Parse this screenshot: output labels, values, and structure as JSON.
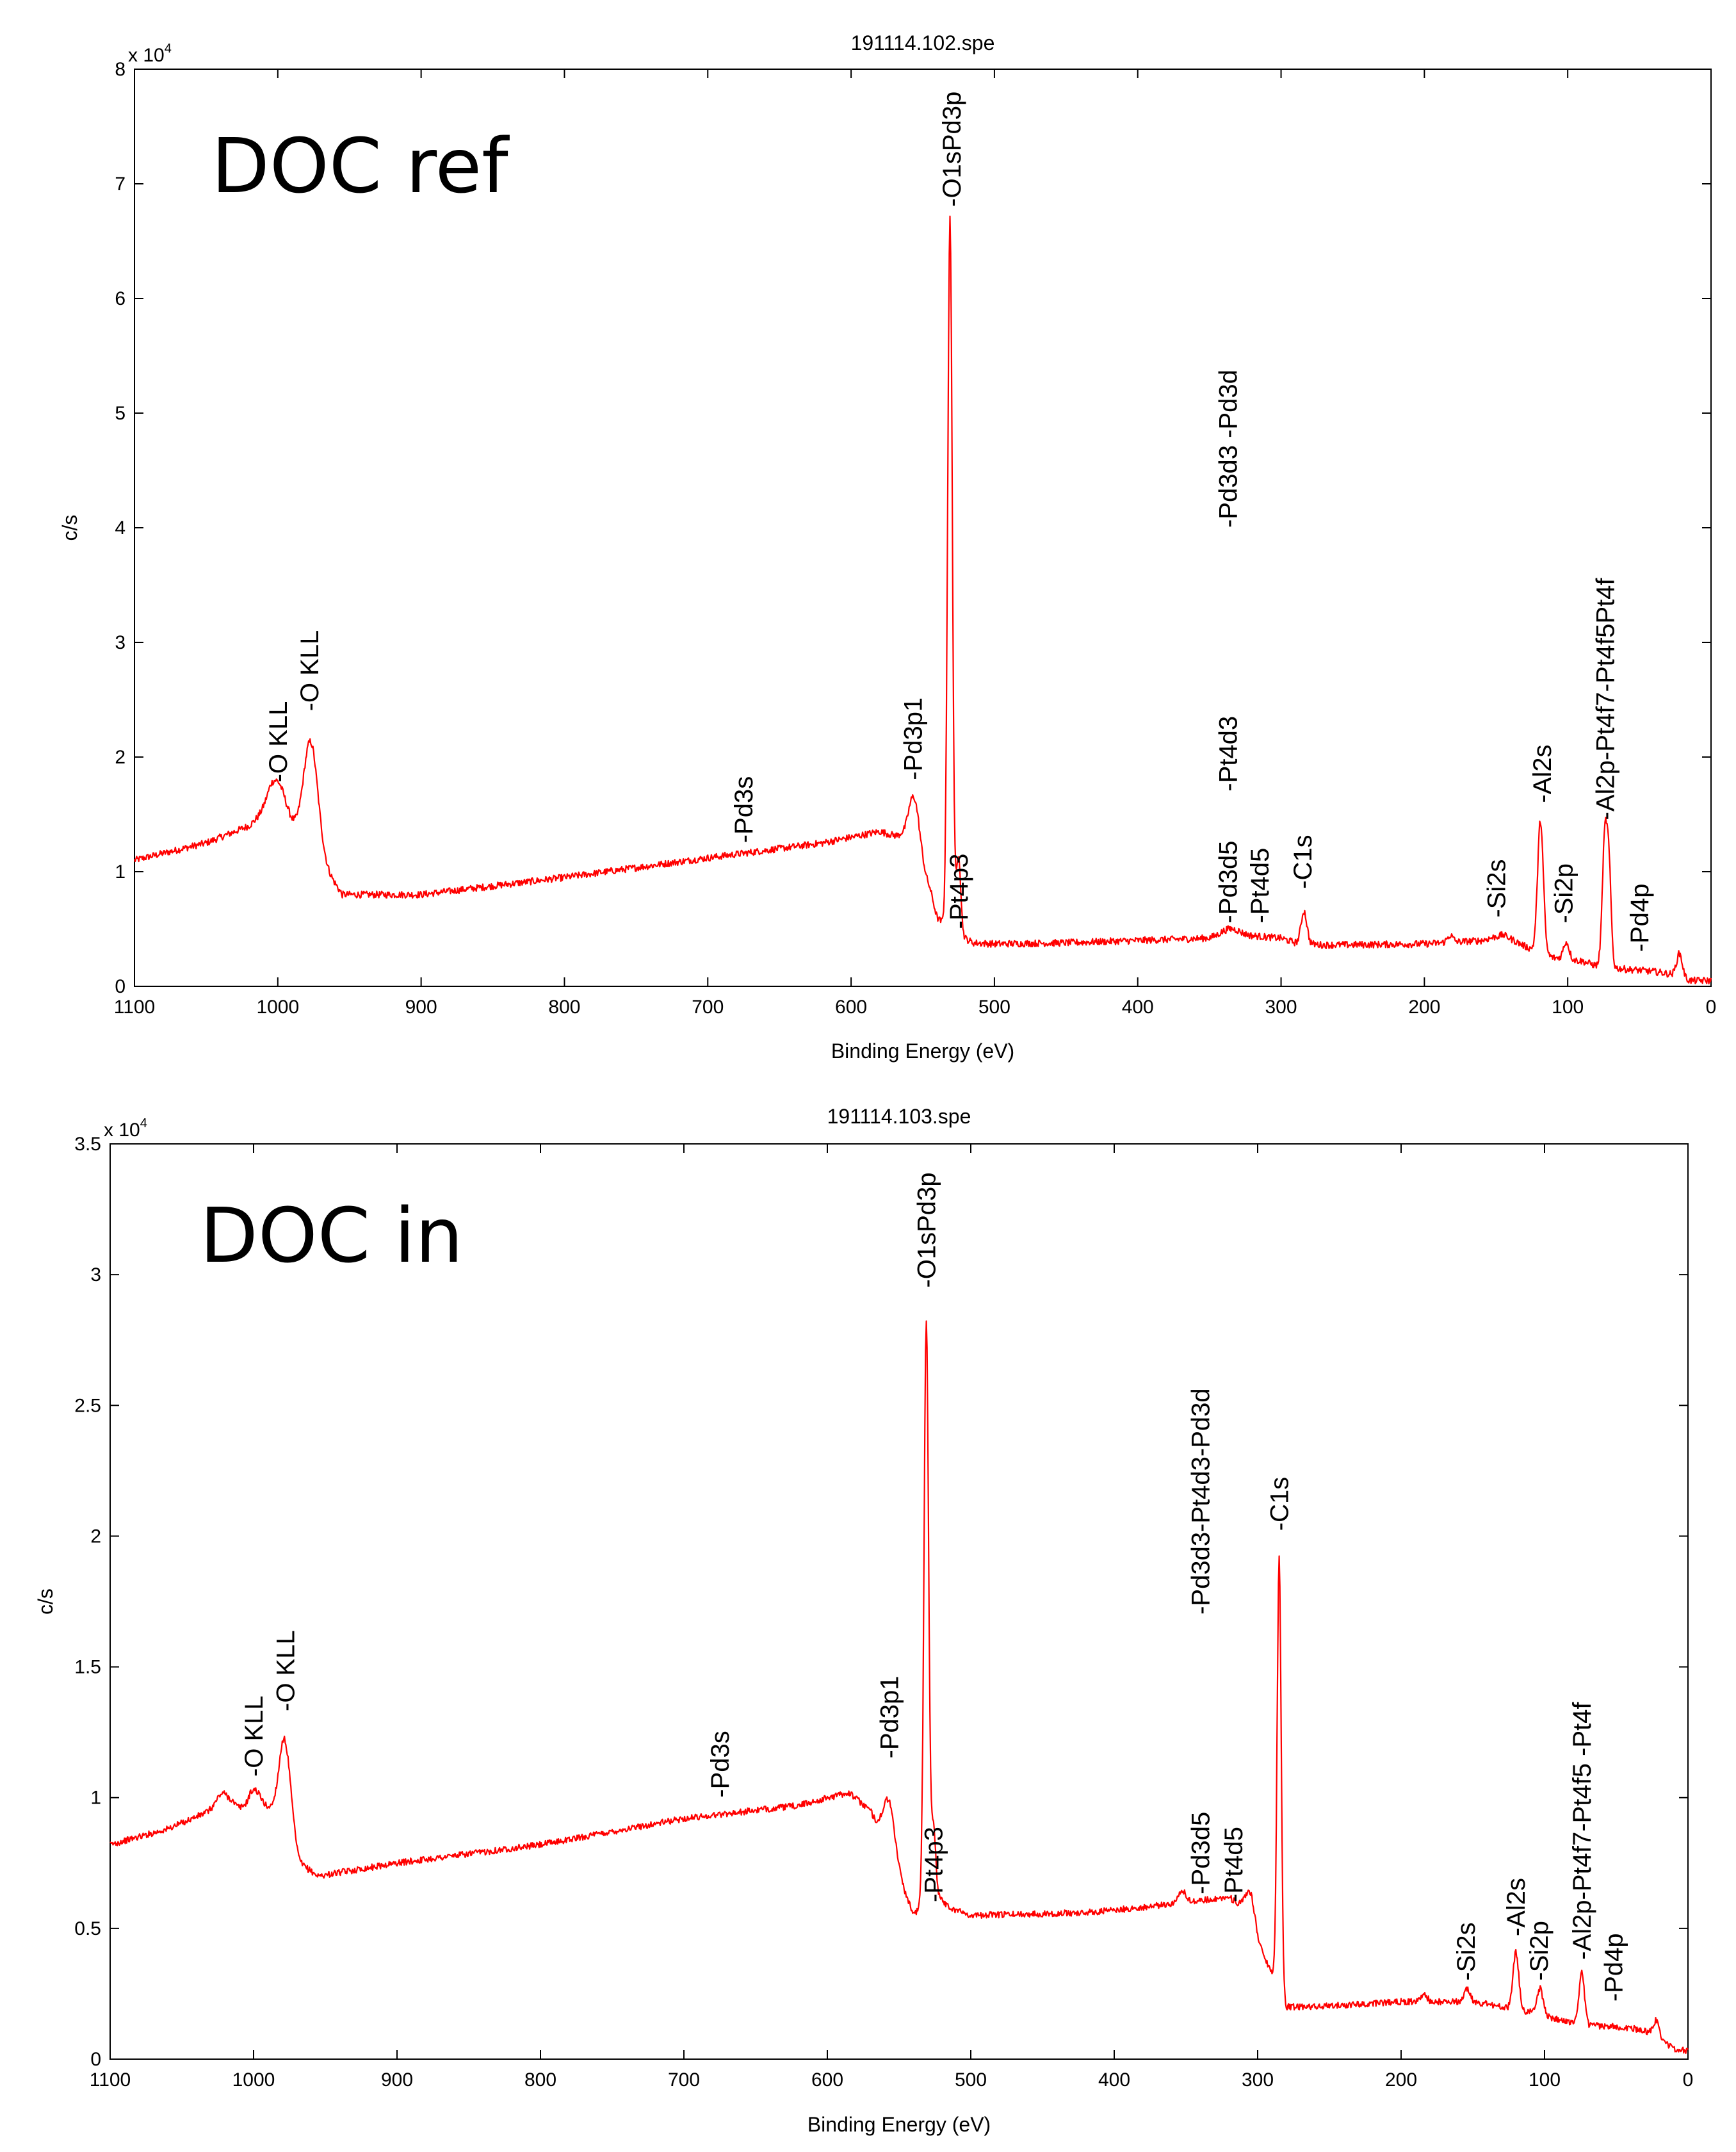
{
  "chart_data": [
    {
      "type": "line",
      "title": "191114.102.spe",
      "annotation": "DOC ref",
      "xlabel": "Binding Energy (eV)",
      "ylabel": "c/s",
      "multiplier_base": "x 10",
      "multiplier_exp": "4",
      "xlim": [
        1100,
        0
      ],
      "ylim": [
        0,
        8
      ],
      "x_ticks": [
        1100,
        1000,
        900,
        800,
        700,
        600,
        500,
        400,
        300,
        200,
        100,
        0
      ],
      "y_ticks": [
        0,
        1,
        2,
        3,
        4,
        5,
        6,
        7,
        8
      ],
      "series_color": "#ff0000",
      "baseline": [
        [
          1100,
          1.1
        ],
        [
          1050,
          1.25
        ],
        [
          1020,
          1.4
        ],
        [
          1005,
          1.55
        ],
        [
          985,
          1.3
        ],
        [
          968,
          1.05
        ],
        [
          955,
          0.8
        ],
        [
          900,
          0.8
        ],
        [
          800,
          0.95
        ],
        [
          700,
          1.12
        ],
        [
          620,
          1.25
        ],
        [
          580,
          1.35
        ],
        [
          565,
          1.3
        ],
        [
          545,
          0.85
        ],
        [
          540,
          0.6
        ],
        [
          532,
          0.5
        ],
        [
          525,
          0.45
        ],
        [
          515,
          0.38
        ],
        [
          500,
          0.37
        ],
        [
          450,
          0.38
        ],
        [
          400,
          0.4
        ],
        [
          350,
          0.42
        ],
        [
          330,
          0.45
        ],
        [
          300,
          0.42
        ],
        [
          290,
          0.38
        ],
        [
          270,
          0.36
        ],
        [
          200,
          0.37
        ],
        [
          160,
          0.4
        ],
        [
          145,
          0.45
        ],
        [
          130,
          0.35
        ],
        [
          110,
          0.25
        ],
        [
          90,
          0.22
        ],
        [
          80,
          0.18
        ],
        [
          60,
          0.15
        ],
        [
          40,
          0.13
        ],
        [
          25,
          0.1
        ],
        [
          15,
          0.05
        ],
        [
          5,
          0.05
        ],
        [
          0,
          0.05
        ]
      ],
      "peaks": [
        {
          "center": 1000,
          "height": 0.3,
          "width": 6
        },
        {
          "center": 977,
          "height": 0.95,
          "width": 5
        },
        {
          "center": 556,
          "height": 0.55,
          "width": 4
        },
        {
          "center": 531,
          "height": 6.2,
          "width": 1.6
        },
        {
          "center": 525,
          "height": 0.7,
          "width": 1.5
        },
        {
          "center": 336,
          "height": 0.06,
          "width": 6
        },
        {
          "center": 284,
          "height": 0.28,
          "width": 2
        },
        {
          "center": 182,
          "height": 0.06,
          "width": 2
        },
        {
          "center": 119,
          "height": 1.15,
          "width": 2
        },
        {
          "center": 101,
          "height": 0.15,
          "width": 2
        },
        {
          "center": 74,
          "height": 1.15,
          "width": 1.8
        },
        {
          "center": 71,
          "height": 0.7,
          "width": 1.5
        },
        {
          "center": 22,
          "height": 0.2,
          "width": 2
        }
      ],
      "noise": 0.03,
      "peak_labels": [
        {
          "text": "-O KLL",
          "x": 1000,
          "y": 1.78
        },
        {
          "text": "-O KLL",
          "x": 978,
          "y": 2.4
        },
        {
          "text": "-Pd3s",
          "x": 675,
          "y": 1.25
        },
        {
          "text": "-Pd3p1",
          "x": 557,
          "y": 1.8
        },
        {
          "text": "-O1sPd3p",
          "x": 530,
          "y": 6.8
        },
        {
          "text": "-Pt4p3",
          "x": 525,
          "y": 0.5
        },
        {
          "text": "-Pd3d5",
          "x": 337,
          "y": 0.55
        },
        {
          "text": "-Pd3d3 -Pd3d",
          "x": 337,
          "y": 4.0
        },
        {
          "text": "-Pt4d3",
          "x": 337,
          "y": 1.7
        },
        {
          "text": "-Pt4d5",
          "x": 315,
          "y": 0.55
        },
        {
          "text": "-C1s",
          "x": 285,
          "y": 0.85
        },
        {
          "text": "-Si2s",
          "x": 150,
          "y": 0.6
        },
        {
          "text": "-Si2p",
          "x": 103,
          "y": 0.55
        },
        {
          "text": "-Al2s",
          "x": 118,
          "y": 1.6
        },
        {
          "text": "-Al2p-Pt4f7-Pt4f5Pt4f",
          "x": 74,
          "y": 1.45
        },
        {
          "text": "-Pd4p",
          "x": 50,
          "y": 0.3
        }
      ]
    },
    {
      "type": "line",
      "title": "191114.103.spe",
      "annotation": "DOC in",
      "xlabel": "Binding Energy (eV)",
      "ylabel": "c/s",
      "multiplier_base": "x 10",
      "multiplier_exp": "4",
      "xlim": [
        1100,
        0
      ],
      "ylim": [
        0,
        3.5
      ],
      "x_ticks": [
        1100,
        1000,
        900,
        800,
        700,
        600,
        500,
        400,
        300,
        200,
        100,
        0
      ],
      "y_ticks": [
        0,
        0.5,
        1,
        1.5,
        2,
        2.5,
        3,
        3.5
      ],
      "series_color": "#ff0000",
      "baseline": [
        [
          1100,
          0.82
        ],
        [
          1060,
          0.88
        ],
        [
          1030,
          0.95
        ],
        [
          1015,
          0.98
        ],
        [
          1005,
          0.92
        ],
        [
          990,
          0.95
        ],
        [
          980,
          0.95
        ],
        [
          968,
          0.75
        ],
        [
          955,
          0.7
        ],
        [
          900,
          0.75
        ],
        [
          800,
          0.82
        ],
        [
          700,
          0.92
        ],
        [
          620,
          0.97
        ],
        [
          585,
          1.02
        ],
        [
          570,
          0.95
        ],
        [
          550,
          0.7
        ],
        [
          540,
          0.55
        ],
        [
          530,
          0.62
        ],
        [
          522,
          0.62
        ],
        [
          515,
          0.58
        ],
        [
          500,
          0.55
        ],
        [
          420,
          0.56
        ],
        [
          380,
          0.58
        ],
        [
          350,
          0.6
        ],
        [
          320,
          0.62
        ],
        [
          310,
          0.58
        ],
        [
          300,
          0.45
        ],
        [
          292,
          0.35
        ],
        [
          285,
          0.3
        ],
        [
          280,
          0.2
        ],
        [
          260,
          0.2
        ],
        [
          200,
          0.22
        ],
        [
          150,
          0.22
        ],
        [
          130,
          0.2
        ],
        [
          110,
          0.18
        ],
        [
          90,
          0.15
        ],
        [
          70,
          0.13
        ],
        [
          40,
          0.12
        ],
        [
          25,
          0.1
        ],
        [
          10,
          0.04
        ],
        [
          0,
          0.03
        ]
      ],
      "peaks": [
        {
          "center": 1022,
          "height": 0.05,
          "width": 4
        },
        {
          "center": 1000,
          "height": 0.1,
          "width": 5
        },
        {
          "center": 978,
          "height": 0.3,
          "width": 4
        },
        {
          "center": 557,
          "height": 0.2,
          "width": 4
        },
        {
          "center": 531,
          "height": 2.2,
          "width": 1.6
        },
        {
          "center": 526,
          "height": 0.28,
          "width": 1.5
        },
        {
          "center": 353,
          "height": 0.05,
          "width": 2.5
        },
        {
          "center": 305,
          "height": 0.12,
          "width": 3
        },
        {
          "center": 285,
          "height": 1.62,
          "width": 1.4
        },
        {
          "center": 184,
          "height": 0.03,
          "width": 2
        },
        {
          "center": 154,
          "height": 0.05,
          "width": 2
        },
        {
          "center": 120,
          "height": 0.22,
          "width": 2
        },
        {
          "center": 103,
          "height": 0.1,
          "width": 2
        },
        {
          "center": 74,
          "height": 0.2,
          "width": 1.8
        },
        {
          "center": 22,
          "height": 0.06,
          "width": 2
        }
      ],
      "noise": 0.012,
      "peak_labels": [
        {
          "text": "-O KLL",
          "x": 1000,
          "y": 1.08
        },
        {
          "text": "-O KLL",
          "x": 978,
          "y": 1.33
        },
        {
          "text": "-Pd3s",
          "x": 675,
          "y": 1.0
        },
        {
          "text": "-Pd3p1",
          "x": 557,
          "y": 1.15
        },
        {
          "text": "-O1sPd3p",
          "x": 531,
          "y": 2.95
        },
        {
          "text": "-Pt4p3",
          "x": 526,
          "y": 0.6
        },
        {
          "text": "-Pd3d5",
          "x": 340,
          "y": 0.63
        },
        {
          "text": "-Pd3d3-Pt4d3-Pd3d",
          "x": 340,
          "y": 1.7
        },
        {
          "text": "-Pt4d5",
          "x": 317,
          "y": 0.6
        },
        {
          "text": "-C1s",
          "x": 285,
          "y": 2.02
        },
        {
          "text": "-Si2s",
          "x": 155,
          "y": 0.3
        },
        {
          "text": "-Si2p",
          "x": 104,
          "y": 0.3
        },
        {
          "text": "-Al2s",
          "x": 120,
          "y": 0.47
        },
        {
          "text": "-Al2p-Pt4f7-Pt4f5 -Pt4f",
          "x": 74,
          "y": 0.38
        },
        {
          "text": "-Pd4p",
          "x": 52,
          "y": 0.22
        }
      ]
    }
  ]
}
